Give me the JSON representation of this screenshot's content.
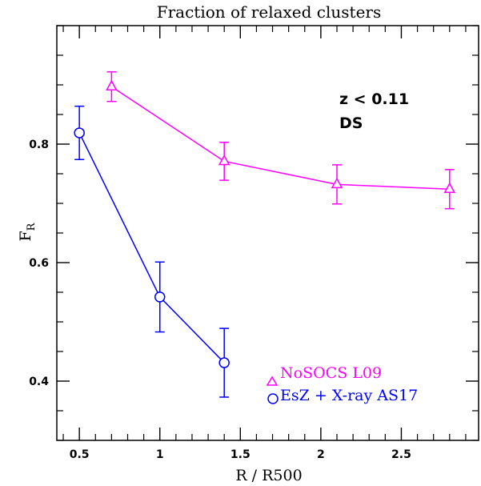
{
  "chart_data": {
    "type": "line",
    "title": "Fraction of relaxed clusters",
    "xlabel": "R / R500",
    "ylabel_main": "F",
    "ylabel_sub": "R",
    "xlim": [
      0.36,
      2.98
    ],
    "ylim": [
      0.3,
      1.0
    ],
    "x_ticks": [
      0.5,
      1.0,
      1.5,
      2.0,
      2.5
    ],
    "x_tick_labels": [
      "0.5",
      "1",
      "1.5",
      "2",
      "2.5"
    ],
    "x_minor_step": 0.1,
    "y_ticks": [
      0.4,
      0.6,
      0.8
    ],
    "y_tick_labels": [
      "0.4",
      "0.6",
      "0.8"
    ],
    "y_minor_step": 0.05,
    "annotations": [
      "z < 0.11",
      "DS"
    ],
    "legend_position": "bottom-right",
    "series": [
      {
        "name": "NoSOCS L09",
        "color": "#ff00ff",
        "marker": "triangle",
        "x": [
          0.7,
          1.4,
          2.1,
          2.8
        ],
        "y": [
          0.897,
          0.771,
          0.732,
          0.724
        ],
        "yerr": [
          0.025,
          0.032,
          0.033,
          0.033
        ]
      },
      {
        "name": "EsZ + X-ray AS17",
        "color": "#0000ff",
        "marker": "circle",
        "x": [
          0.5,
          1.0,
          1.4
        ],
        "y": [
          0.819,
          0.542,
          0.431
        ],
        "yerr": [
          0.045,
          0.059,
          0.058
        ]
      }
    ]
  }
}
